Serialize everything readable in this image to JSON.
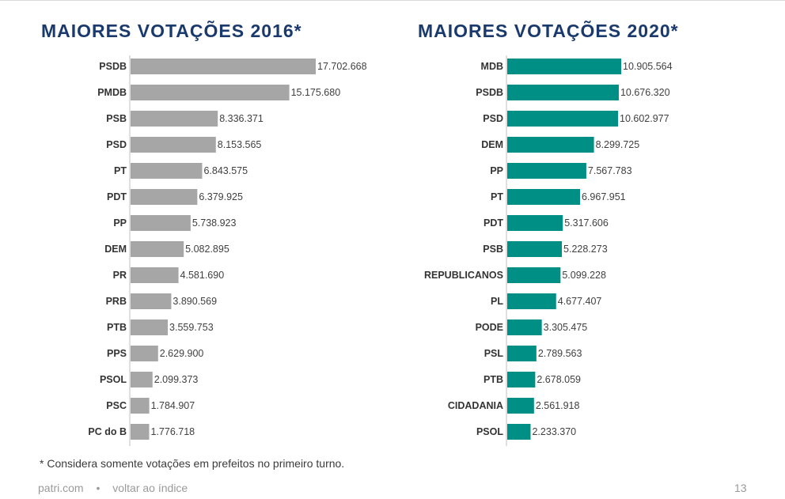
{
  "chart_data": [
    {
      "type": "bar",
      "orientation": "horizontal",
      "title": "MAIORES VOTAÇÕES 2016*",
      "bar_color": "#a6a6a6",
      "categories": [
        "PSDB",
        "PMDB",
        "PSB",
        "PSD",
        "PT",
        "PDT",
        "PP",
        "DEM",
        "PR",
        "PRB",
        "PTB",
        "PPS",
        "PSOL",
        "PSC",
        "PC do B"
      ],
      "values": [
        17702668,
        15175680,
        8336371,
        8153565,
        6843575,
        6379925,
        5738923,
        5082895,
        4581690,
        3890569,
        3559753,
        2629900,
        2099373,
        1784907,
        1776718
      ],
      "data_labels": [
        "17.702.668",
        "15.175.680",
        "8.336.371",
        "8.153.565",
        "6.843.575",
        "6.379.925",
        "5.738.923",
        "5.082.895",
        "4.581.690",
        "3.890.569",
        "3.559.753",
        "2.629.900",
        "2.099.373",
        "1.784.907",
        "1.776.718"
      ]
    },
    {
      "type": "bar",
      "orientation": "horizontal",
      "title": "MAIORES VOTAÇÕES 2020*",
      "bar_color": "#008f85",
      "categories": [
        "MDB",
        "PSDB",
        "PSD",
        "DEM",
        "PP",
        "PT",
        "PDT",
        "PSB",
        "REPUBLICANOS",
        "PL",
        "PODE",
        "PSL",
        "PTB",
        "CIDADANIA",
        "PSOL"
      ],
      "values": [
        10905564,
        10676320,
        10602977,
        8299725,
        7567783,
        6967951,
        5317606,
        5228273,
        5099228,
        4677407,
        3305475,
        2789563,
        2678059,
        2561918,
        2233370
      ],
      "data_labels": [
        "10.905.564",
        "10.676.320",
        "10.602.977",
        "8.299.725",
        "7.567.783",
        "6.967.951",
        "5.317.606",
        "5.228.273",
        "5.099.228",
        "4.677.407",
        "3.305.475",
        "2.789.563",
        "2.678.059",
        "2.561.918",
        "2.233.370"
      ]
    }
  ],
  "footnote": "* Considera somente votações em prefeitos no primeiro turno.",
  "footer": {
    "site": "patri.com",
    "separator": "•",
    "back_link": "voltar ao índice",
    "page_number": "13"
  }
}
